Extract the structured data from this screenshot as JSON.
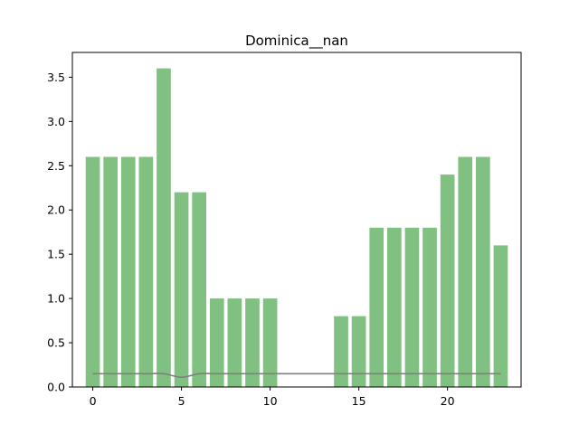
{
  "chart_data": {
    "type": "bar",
    "title": "Dominica__nan",
    "xlabel": "",
    "ylabel": "",
    "x": [
      0,
      1,
      2,
      3,
      4,
      5,
      6,
      7,
      8,
      9,
      10,
      11,
      12,
      13,
      14,
      15,
      16,
      17,
      18,
      19,
      20,
      21,
      22,
      23
    ],
    "series": [
      {
        "type": "bar",
        "color": "#80c080",
        "values": [
          2.6,
          2.6,
          2.6,
          2.6,
          3.6,
          2.2,
          2.2,
          1.0,
          1.0,
          1.0,
          1.0,
          0,
          0,
          0,
          0.8,
          0.8,
          1.8,
          1.8,
          1.8,
          1.8,
          2.4,
          2.6,
          2.6,
          1.6
        ]
      },
      {
        "type": "line",
        "color": "#808080",
        "values": [
          0.15,
          0.15,
          0.15,
          0.15,
          0.15,
          0.11,
          0.15,
          0.15,
          0.15,
          0.15,
          0.15,
          0.15,
          0.15,
          0.15,
          0.15,
          0.15,
          0.15,
          0.15,
          0.15,
          0.15,
          0.15,
          0.15,
          0.15,
          0.15
        ]
      }
    ],
    "xlim": [
      -1.15,
      24.15
    ],
    "ylim": [
      0,
      3.78
    ],
    "xticks": [
      0,
      5,
      10,
      15,
      20
    ],
    "yticks": [
      0.0,
      0.5,
      1.0,
      1.5,
      2.0,
      2.5,
      3.0,
      3.5
    ],
    "ytick_labels": [
      "0.0",
      "0.5",
      "1.0",
      "1.5",
      "2.0",
      "2.5",
      "3.0",
      "3.5"
    ],
    "xtick_labels": [
      "0",
      "5",
      "10",
      "15",
      "20"
    ],
    "grid": false,
    "legend": false
  }
}
